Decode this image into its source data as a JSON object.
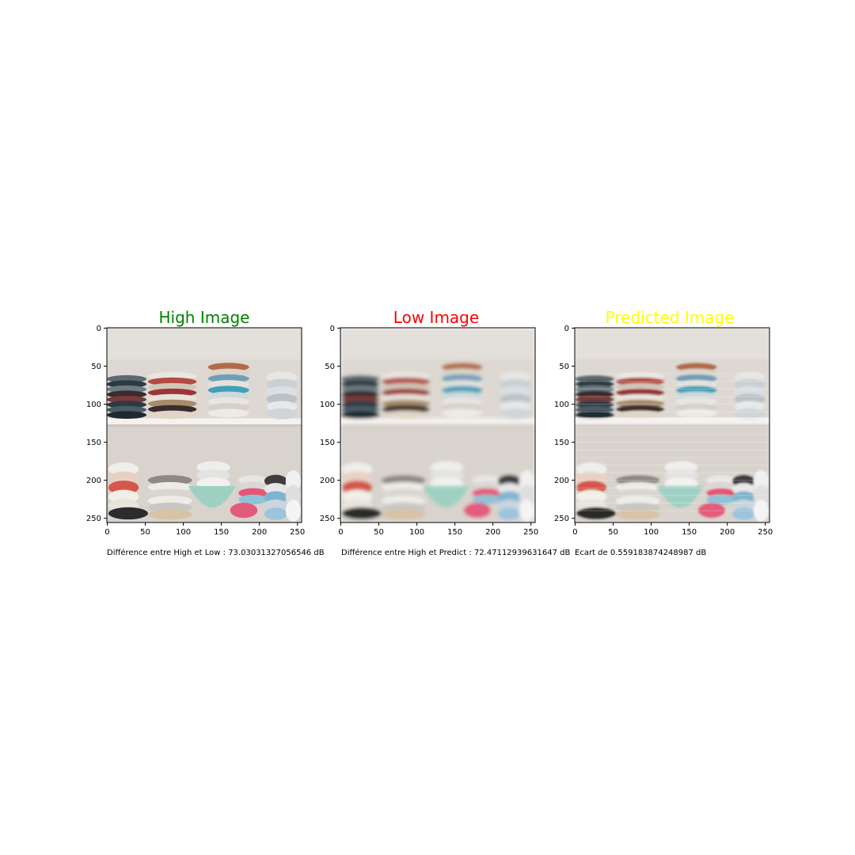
{
  "figure": {
    "panels": [
      {
        "title": "High Image",
        "title_color": "#008000",
        "variant": "high",
        "caption": "Différence entre High et Low : 73.03031327056546 dB",
        "x_ticks": [
          "0",
          "50",
          "100",
          "150",
          "200",
          "250"
        ],
        "y_ticks": [
          "0",
          "50",
          "100",
          "150",
          "200",
          "250"
        ]
      },
      {
        "title": "Low Image",
        "title_color": "#ff0000",
        "variant": "low",
        "caption": "Différence entre High et Predict : 72.47112939631647 dB",
        "x_ticks": [
          "0",
          "50",
          "100",
          "150",
          "200",
          "250"
        ],
        "y_ticks": [
          "0",
          "50",
          "100",
          "150",
          "200",
          "250"
        ]
      },
      {
        "title": "Predicted Image",
        "title_color": "#ffff00",
        "variant": "pred",
        "caption": "Ecart de 0.559183874248987 dB",
        "x_ticks": [
          "0",
          "50",
          "100",
          "150",
          "200",
          "250"
        ],
        "y_ticks": [
          "0",
          "50",
          "100",
          "150",
          "200",
          "250"
        ]
      }
    ]
  }
}
